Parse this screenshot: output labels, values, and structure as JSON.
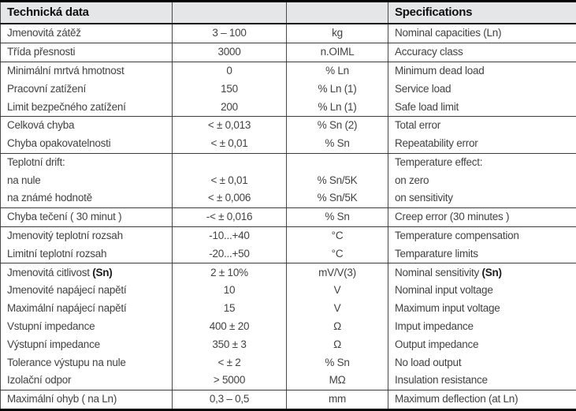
{
  "table": {
    "header": {
      "cz_title": "Technická data",
      "en_title": "Specifications"
    },
    "columns": [
      "czech-label",
      "value",
      "unit",
      "english-label"
    ],
    "sections": [
      {
        "rows": [
          {
            "cz": "Jmenovitá zátěž",
            "value": "3 – 100",
            "unit": "kg",
            "en": "Nominal capacities (Ln)"
          }
        ]
      },
      {
        "rows": [
          {
            "cz": "Třída přesnosti",
            "value": "3000",
            "unit": "n.OIML",
            "en": "Accuracy class"
          }
        ]
      },
      {
        "rows": [
          {
            "cz": "Minimální mrtvá hmotnost",
            "value": "0",
            "unit": "% Ln",
            "en": "Minimum dead load"
          },
          {
            "cz": "Pracovní zatížení",
            "value": "150",
            "unit": "% Ln (1)",
            "en": "Service load"
          },
          {
            "cz": "Limit bezpečného zatížení",
            "value": "200",
            "unit": "% Ln (1)",
            "en": "Safe load limit"
          }
        ]
      },
      {
        "rows": [
          {
            "cz": "Celková chyba",
            "value": "< ± 0,013",
            "unit": "% Sn (2)",
            "en": "Total error"
          },
          {
            "cz": "Chyba opakovatelnosti",
            "value": "< ± 0,01",
            "unit": "% Sn",
            "en": "Repeatability error"
          }
        ]
      },
      {
        "rows": [
          {
            "cz": "Teplotní drift:",
            "value": "",
            "unit": "",
            "en": "Temperature effect:"
          },
          {
            "cz": "na nule",
            "value": "< ± 0,01",
            "unit": "% Sn/5K",
            "en": "on zero"
          },
          {
            "cz": "na známé hodnotě",
            "value": "< ± 0,006",
            "unit": "% Sn/5K",
            "en": "on sensitivity"
          }
        ]
      },
      {
        "rows": [
          {
            "cz": "Chyba tečení ( 30 minut )",
            "value": "-< ± 0,016",
            "unit": "% Sn",
            "en": "Creep error (30 minutes )"
          }
        ]
      },
      {
        "rows": [
          {
            "cz": "Jmenovitý teplotní rozsah",
            "value": "-10...+40",
            "unit": "°C",
            "en": "Temperature compensation"
          },
          {
            "cz": "Limitní teplotní rozsah",
            "value": "-20...+50",
            "unit": "°C",
            "en": "Temparature limits"
          }
        ]
      },
      {
        "rows": [
          {
            "cz": "Jmenovitá citlivost ",
            "cz_bold": "(Sn)",
            "value": "2 ± 10%",
            "unit": "mV/V(3)",
            "en": "Nominal sensitivity ",
            "en_bold": "(Sn)"
          },
          {
            "cz": "Jmenovité napájecí napětí",
            "value": "10",
            "unit": "V",
            "en": "Nominal input voltage"
          },
          {
            "cz": "Maximální napájecí napětí",
            "value": "15",
            "unit": "V",
            "en": "Maximum input voltage"
          },
          {
            "cz": "Vstupní impedance",
            "value": "400 ± 20",
            "unit": "Ω",
            "en": "Imput impedance"
          },
          {
            "cz": "Výstupní impedance",
            "value": "350 ± 3",
            "unit": "Ω",
            "en": "Output impedance"
          },
          {
            "cz": "Tolerance výstupu na nule",
            "value": "< ± 2",
            "unit": "% Sn",
            "en": "No load output"
          },
          {
            "cz": "Izolační odpor",
            "value": "> 5000",
            "unit": "MΩ",
            "en": "Insulation resistance"
          }
        ]
      },
      {
        "rows": [
          {
            "cz": "Maximální ohyb ( na Ln)",
            "value": "0,3 – 0,5",
            "unit": "mm",
            "en": "Maximum deflection (at Ln)"
          }
        ]
      }
    ],
    "colors": {
      "header_bg": "#e5e6e8",
      "thick_border": "#000000",
      "thin_border": "#3c3c3c",
      "text": "#424242"
    }
  }
}
